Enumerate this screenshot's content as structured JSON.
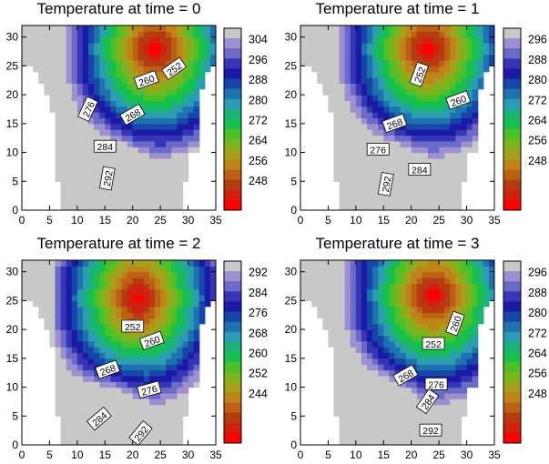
{
  "chart_data": [
    {
      "type": "contour",
      "title": "Temperature at time = 0",
      "xticks": [
        "0",
        "5",
        "10",
        "15",
        "20",
        "25",
        "30",
        "35"
      ],
      "yticks": [
        "0",
        "5",
        "10",
        "15",
        "20",
        "25",
        "30"
      ],
      "xlim": [
        0,
        35
      ],
      "ylim": [
        0,
        32
      ],
      "colorbar_labels": [
        "304",
        "296",
        "288",
        "280",
        "272",
        "264",
        "256",
        "248"
      ],
      "contour_labels": [
        {
          "text": "252",
          "x": 27.5,
          "y": 24.5,
          "angle": -35
        },
        {
          "text": "260",
          "x": 22.5,
          "y": 22.5,
          "angle": -20
        },
        {
          "text": "268",
          "x": 20.0,
          "y": 16.5,
          "angle": -30
        },
        {
          "text": "276",
          "x": 12.0,
          "y": 17.5,
          "angle": -65
        },
        {
          "text": "284",
          "x": 15.0,
          "y": 11.0,
          "angle": 0
        },
        {
          "text": "292",
          "x": 15.5,
          "y": 5.5,
          "angle": -80
        }
      ],
      "levels": {
        "min": 244,
        "max": 308,
        "step": 4,
        "warmest_region": [
          21,
          28
        ]
      }
    },
    {
      "type": "contour",
      "title": "Temperature at time = 1",
      "xticks": [
        "0",
        "5",
        "10",
        "15",
        "20",
        "25",
        "30",
        "35"
      ],
      "yticks": [
        "0",
        "5",
        "10",
        "15",
        "20",
        "25",
        "30"
      ],
      "xlim": [
        0,
        35
      ],
      "ylim": [
        0,
        32
      ],
      "colorbar_labels": [
        "296",
        "288",
        "280",
        "272",
        "264",
        "256",
        "248"
      ],
      "contour_labels": [
        {
          "text": "252",
          "x": 21.5,
          "y": 23.5,
          "angle": -70
        },
        {
          "text": "260",
          "x": 28.5,
          "y": 19.0,
          "angle": -20
        },
        {
          "text": "268",
          "x": 17.0,
          "y": 15.0,
          "angle": -20
        },
        {
          "text": "276",
          "x": 14.0,
          "y": 10.5,
          "angle": 0
        },
        {
          "text": "284",
          "x": 21.5,
          "y": 7.0,
          "angle": 0
        },
        {
          "text": "292",
          "x": 15.5,
          "y": 4.5,
          "angle": -80
        }
      ],
      "levels": {
        "min": 244,
        "max": 300,
        "step": 4,
        "warmest_region": [
          20,
          27
        ]
      }
    },
    {
      "type": "contour",
      "title": "Temperature at time = 2",
      "xticks": [
        "0",
        "5",
        "10",
        "15",
        "20",
        "25",
        "30",
        "35"
      ],
      "yticks": [
        "0",
        "5",
        "10",
        "15",
        "20",
        "25",
        "30"
      ],
      "xlim": [
        0,
        35
      ],
      "ylim": [
        0,
        32
      ],
      "colorbar_labels": [
        "292",
        "284",
        "276",
        "268",
        "260",
        "252",
        "244"
      ],
      "contour_labels": [
        {
          "text": "252",
          "x": 20.0,
          "y": 20.5,
          "angle": 0
        },
        {
          "text": "260",
          "x": 23.5,
          "y": 18.0,
          "angle": -20
        },
        {
          "text": "268",
          "x": 15.5,
          "y": 13.0,
          "angle": -20
        },
        {
          "text": "276",
          "x": 23.0,
          "y": 9.5,
          "angle": -15
        },
        {
          "text": "284",
          "x": 14.0,
          "y": 4.5,
          "angle": -40
        },
        {
          "text": "292",
          "x": 21.5,
          "y": 2.0,
          "angle": -50
        }
      ],
      "levels": {
        "min": 240,
        "max": 300,
        "step": 4,
        "warmest_region": [
          18,
          25
        ]
      }
    },
    {
      "type": "contour",
      "title": "Temperature at time = 3",
      "xticks": [
        "0",
        "5",
        "10",
        "15",
        "20",
        "25",
        "30",
        "35"
      ],
      "yticks": [
        "0",
        "5",
        "10",
        "15",
        "20",
        "25",
        "30"
      ],
      "xlim": [
        0,
        35
      ],
      "ylim": [
        0,
        32
      ],
      "colorbar_labels": [
        "296",
        "288",
        "280",
        "272",
        "264",
        "256",
        "248"
      ],
      "contour_labels": [
        {
          "text": "260",
          "x": 28.0,
          "y": 21.0,
          "angle": -70
        },
        {
          "text": "252",
          "x": 24.0,
          "y": 17.5,
          "angle": 0
        },
        {
          "text": "268",
          "x": 19.0,
          "y": 12.0,
          "angle": -30
        },
        {
          "text": "276",
          "x": 24.5,
          "y": 10.5,
          "angle": 0
        },
        {
          "text": "284",
          "x": 23.0,
          "y": 7.5,
          "angle": -55
        },
        {
          "text": "292",
          "x": 23.5,
          "y": 2.5,
          "angle": 0
        }
      ],
      "levels": {
        "min": 244,
        "max": 300,
        "step": 4,
        "warmest_region": [
          21,
          28
        ]
      }
    }
  ],
  "colorbar_colors": [
    "#c8c8c8",
    "#9f8fd2",
    "#6a6ac8",
    "#3535b5",
    "#1a1aa6",
    "#1646a8",
    "#1e72b0",
    "#2b9cb4",
    "#1db27a",
    "#16c14a",
    "#4cc02a",
    "#7ab41e",
    "#a7a01c",
    "#bf8417",
    "#bd5f14",
    "#b73b10",
    "#d31f0f",
    "#ff0000"
  ],
  "colors": {
    "axis": "#000000",
    "label_box": "#ffffff"
  }
}
